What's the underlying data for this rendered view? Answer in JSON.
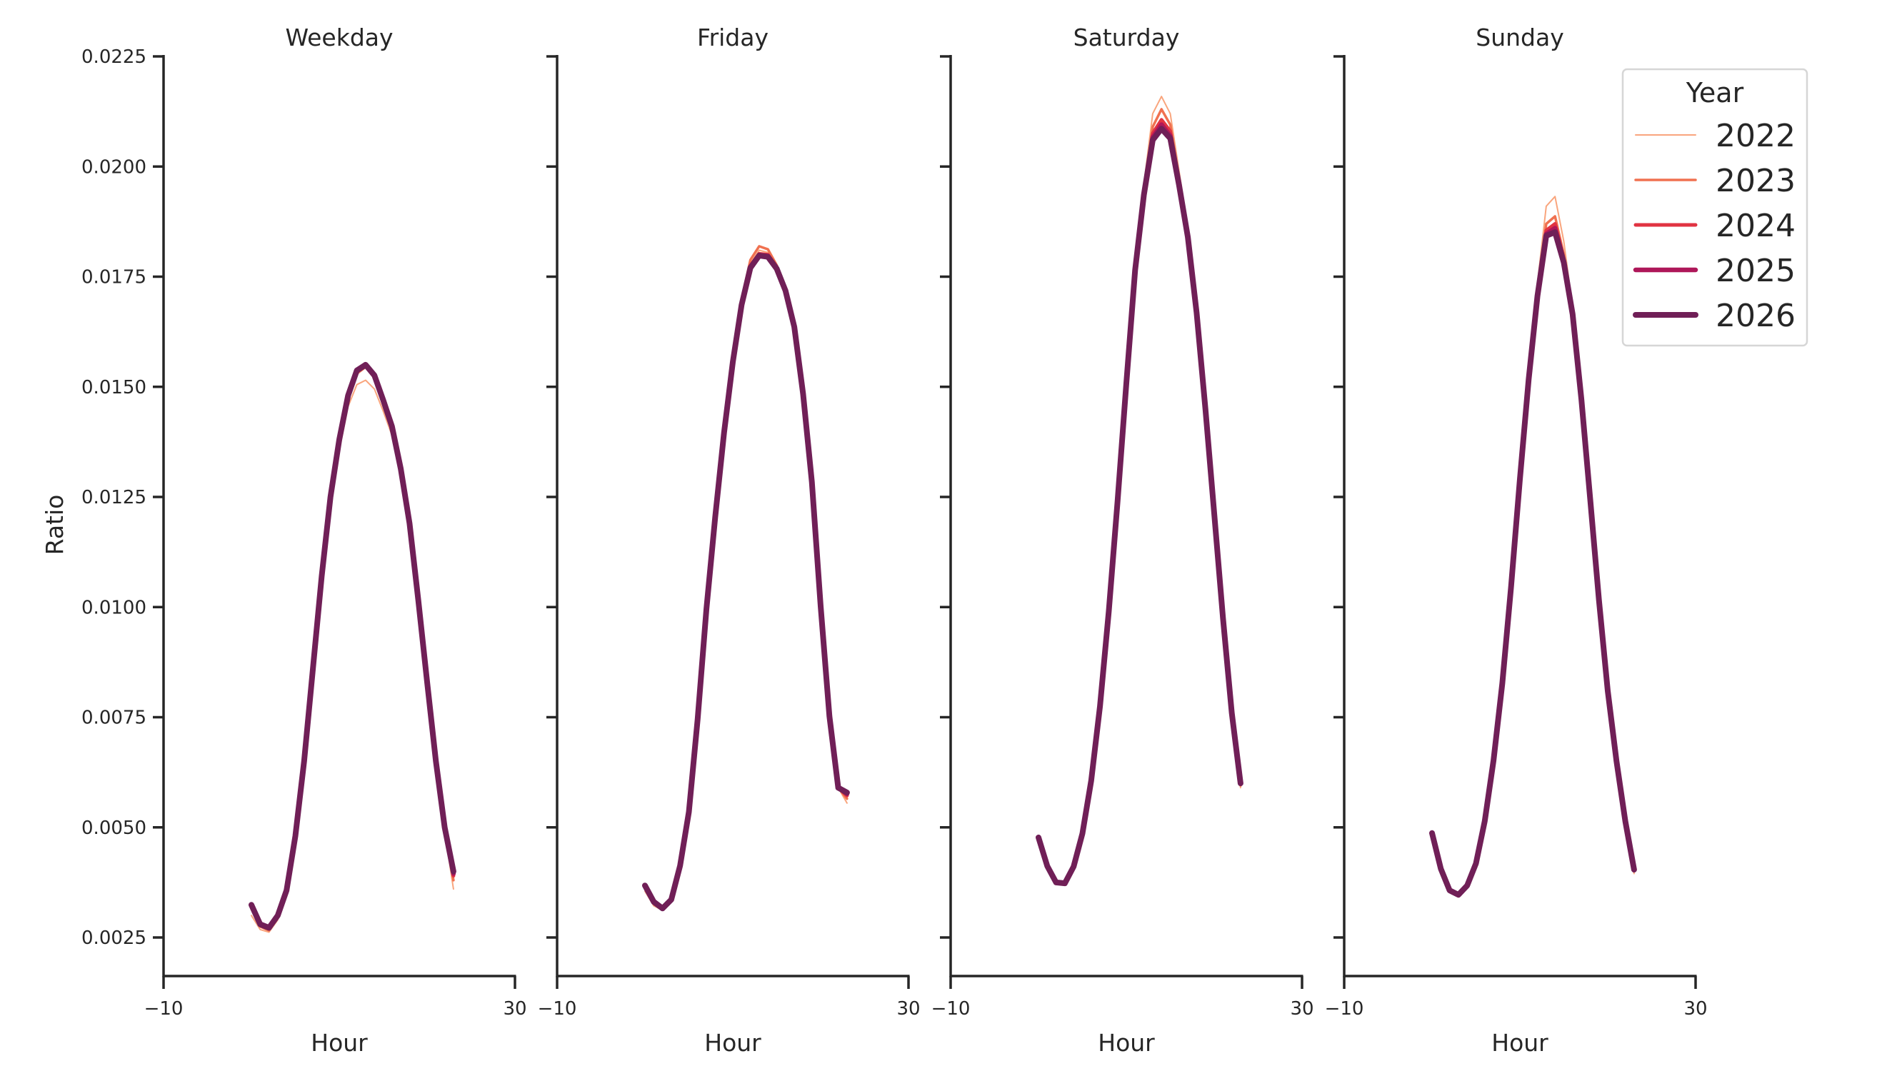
{
  "figure": {
    "ylabel": "Ratio",
    "xlabel": "Hour",
    "legend_title": "Year"
  },
  "chart_data": {
    "type": "line",
    "title": "",
    "xlabel": "Hour",
    "ylabel": "Ratio",
    "xlim": [
      -10,
      30
    ],
    "ylim": [
      0.0016,
      0.0225
    ],
    "xticks": [
      -10,
      30
    ],
    "xtick_labels": [
      "−10",
      "30"
    ],
    "yticks": [
      0.0025,
      0.005,
      0.0075,
      0.01,
      0.0125,
      0.015,
      0.0175,
      0.02,
      0.0225
    ],
    "ytick_labels": [
      "0.0025",
      "0.0050",
      "0.0075",
      "0.0100",
      "0.0125",
      "0.0150",
      "0.0175",
      "0.0200",
      "0.0225"
    ],
    "grid": false,
    "legend_position": "upper right (outside last panel)",
    "x": [
      0,
      1,
      2,
      3,
      4,
      5,
      6,
      7,
      8,
      9,
      10,
      11,
      12,
      13,
      14,
      15,
      16,
      17,
      18,
      19,
      20,
      21,
      22,
      23
    ],
    "legend": [
      {
        "name": "2022",
        "color": "#f9a57d",
        "width": 2
      },
      {
        "name": "2023",
        "color": "#f07150",
        "width": 3.5
      },
      {
        "name": "2024",
        "color": "#e13342",
        "width": 5
      },
      {
        "name": "2025",
        "color": "#ae1759",
        "width": 6.5
      },
      {
        "name": "2026",
        "color": "#701f57",
        "width": 8
      }
    ],
    "panels": [
      {
        "title": "Weekday",
        "series": [
          {
            "name": "2022",
            "values": [
              0.003,
              0.00268,
              0.00262,
              0.0029,
              0.00355,
              0.00475,
              0.0064,
              0.00845,
              0.0105,
              0.0122,
              0.01355,
              0.01455,
              0.01505,
              0.01515,
              0.01495,
              0.01445,
              0.0139,
              0.013,
              0.0118,
              0.01005,
              0.00825,
              0.00645,
              0.0049,
              0.0036
            ]
          },
          {
            "name": "2023",
            "values": [
              0.00315,
              0.00275,
              0.00266,
              0.00295,
              0.00356,
              0.00478,
              0.00646,
              0.00855,
              0.01065,
              0.01245,
              0.01378,
              0.01478,
              0.0153,
              0.01545,
              0.0152,
              0.01465,
              0.01405,
              0.0131,
              0.01188,
              0.0101,
              0.00828,
              0.00648,
              0.00495,
              0.0038
            ]
          },
          {
            "name": "2024",
            "values": [
              0.0032,
              0.00278,
              0.0027,
              0.00298,
              0.00357,
              0.0048,
              0.00648,
              0.00858,
              0.01068,
              0.01248,
              0.0138,
              0.0148,
              0.01535,
              0.0155,
              0.01524,
              0.01468,
              0.01408,
              0.01312,
              0.0119,
              0.01012,
              0.00829,
              0.00649,
              0.00497,
              0.0039
            ]
          },
          {
            "name": "2025",
            "values": [
              0.00322,
              0.00279,
              0.00271,
              0.00299,
              0.00357,
              0.0048,
              0.00649,
              0.00859,
              0.01069,
              0.01249,
              0.0138,
              0.01481,
              0.01536,
              0.01551,
              0.01525,
              0.01469,
              0.01409,
              0.01313,
              0.0119,
              0.01013,
              0.0083,
              0.0065,
              0.00498,
              0.00395
            ]
          },
          {
            "name": "2026",
            "values": [
              0.00324,
              0.0028,
              0.00272,
              0.003,
              0.00357,
              0.0048,
              0.0065,
              0.0086,
              0.0107,
              0.0125,
              0.0138,
              0.0148,
              0.01537,
              0.0155,
              0.01526,
              0.0147,
              0.0141,
              0.01314,
              0.0119,
              0.01015,
              0.0083,
              0.0065,
              0.005,
              0.004
            ]
          }
        ]
      },
      {
        "title": "Friday",
        "series": [
          {
            "name": "2022",
            "values": [
              0.00355,
              0.00322,
              0.00312,
              0.00332,
              0.0041,
              0.0053,
              0.0074,
              0.0099,
              0.012,
              0.0139,
              0.0155,
              0.0169,
              0.0178,
              0.0181,
              0.01805,
              0.0177,
              0.0172,
              0.01635,
              0.0148,
              0.0128,
              0.01,
              0.0075,
              0.0059,
              0.00555
            ]
          },
          {
            "name": "2023",
            "values": [
              0.00362,
              0.00326,
              0.00314,
              0.00334,
              0.00412,
              0.00534,
              0.00745,
              0.00995,
              0.01205,
              0.01395,
              0.01556,
              0.01698,
              0.01788,
              0.01819,
              0.01812,
              0.01776,
              0.01724,
              0.01638,
              0.01484,
              0.01284,
              0.01002,
              0.00752,
              0.0059,
              0.00565
            ]
          },
          {
            "name": "2024",
            "values": [
              0.00365,
              0.00329,
              0.00315,
              0.00335,
              0.00413,
              0.00535,
              0.00746,
              0.00996,
              0.01205,
              0.01395,
              0.01556,
              0.0169,
              0.01775,
              0.01802,
              0.018,
              0.01772,
              0.01722,
              0.01638,
              0.01484,
              0.01284,
              0.01002,
              0.00752,
              0.0059,
              0.00572
            ]
          },
          {
            "name": "2025",
            "values": [
              0.00367,
              0.0033,
              0.00316,
              0.00336,
              0.00413,
              0.00535,
              0.00746,
              0.00996,
              0.01205,
              0.01395,
              0.01556,
              0.01688,
              0.01772,
              0.01799,
              0.01797,
              0.0177,
              0.0172,
              0.01637,
              0.01484,
              0.01284,
              0.01002,
              0.00752,
              0.0059,
              0.00576
            ]
          },
          {
            "name": "2026",
            "values": [
              0.00368,
              0.00331,
              0.00316,
              0.00336,
              0.00413,
              0.00535,
              0.00746,
              0.00996,
              0.01205,
              0.01395,
              0.01556,
              0.01686,
              0.0177,
              0.01798,
              0.01795,
              0.01768,
              0.01718,
              0.01636,
              0.01484,
              0.01284,
              0.01002,
              0.00752,
              0.0059,
              0.00579
            ]
          }
        ]
      },
      {
        "title": "Saturday",
        "series": [
          {
            "name": "2022",
            "values": [
              0.0047,
              0.00405,
              0.0037,
              0.00375,
              0.00415,
              0.0049,
              0.0061,
              0.0078,
              0.01,
              0.0125,
              0.0152,
              0.0179,
              0.0196,
              0.0212,
              0.02159,
              0.0212,
              0.0199,
              0.0186,
              0.0168,
              0.0146,
              0.0122,
              0.0098,
              0.0076,
              0.0059
            ]
          },
          {
            "name": "2023",
            "values": [
              0.00474,
              0.00409,
              0.00373,
              0.00374,
              0.00413,
              0.00488,
              0.00608,
              0.00778,
              0.00995,
              0.01245,
              0.01513,
              0.01775,
              0.01945,
              0.0209,
              0.0213,
              0.02095,
              0.01975,
              0.0185,
              0.01675,
              0.01455,
              0.01217,
              0.00978,
              0.0076,
              0.00595
            ]
          },
          {
            "name": "2024",
            "values": [
              0.00476,
              0.00411,
              0.00374,
              0.00373,
              0.00412,
              0.00487,
              0.00607,
              0.00776,
              0.00992,
              0.01242,
              0.0151,
              0.0177,
              0.0194,
              0.02075,
              0.02106,
              0.0208,
              0.01965,
              0.01845,
              0.01672,
              0.01452,
              0.01215,
              0.00977,
              0.0076,
              0.00598
            ]
          },
          {
            "name": "2025",
            "values": [
              0.00477,
              0.00412,
              0.00375,
              0.00373,
              0.00411,
              0.00486,
              0.00606,
              0.00775,
              0.0099,
              0.0124,
              0.01508,
              0.01766,
              0.01937,
              0.02066,
              0.02095,
              0.0207,
              0.0196,
              0.01842,
              0.0167,
              0.0145,
              0.01214,
              0.00976,
              0.0076,
              0.00599
            ]
          },
          {
            "name": "2026",
            "values": [
              0.00477,
              0.00412,
              0.00375,
              0.00373,
              0.00411,
              0.00486,
              0.00606,
              0.00775,
              0.0099,
              0.0124,
              0.01508,
              0.01765,
              0.01936,
              0.0206,
              0.02086,
              0.02064,
              0.01958,
              0.0184,
              0.01668,
              0.0145,
              0.01213,
              0.00975,
              0.0076,
              0.006
            ]
          }
        ]
      },
      {
        "title": "Sunday",
        "series": [
          {
            "name": "2022",
            "values": [
              0.0048,
              0.004,
              0.00352,
              0.00342,
              0.00362,
              0.00415,
              0.0051,
              0.0065,
              0.00825,
              0.0105,
              0.013,
              0.0154,
              0.01735,
              0.0191,
              0.01932,
              0.0183,
              0.0168,
              0.0148,
              0.0125,
              0.0102,
              0.0081,
              0.0065,
              0.0051,
              0.00395
            ]
          },
          {
            "name": "2023",
            "values": [
              0.00484,
              0.00403,
              0.00355,
              0.00345,
              0.00365,
              0.00417,
              0.00512,
              0.00651,
              0.00826,
              0.01048,
              0.01295,
              0.01525,
              0.01715,
              0.0187,
              0.01887,
              0.018,
              0.0167,
              0.01475,
              0.01248,
              0.01018,
              0.0081,
              0.0065,
              0.00512,
              0.004
            ]
          },
          {
            "name": "2024",
            "values": [
              0.00486,
              0.00405,
              0.00356,
              0.00346,
              0.00367,
              0.00418,
              0.00513,
              0.00652,
              0.00827,
              0.01047,
              0.01292,
              0.0152,
              0.0171,
              0.01855,
              0.0187,
              0.0179,
              0.01667,
              0.01474,
              0.01247,
              0.01017,
              0.0081,
              0.0065,
              0.00513,
              0.00402
            ]
          },
          {
            "name": "2025",
            "values": [
              0.00487,
              0.00406,
              0.00357,
              0.00347,
              0.00368,
              0.00418,
              0.00514,
              0.00652,
              0.00827,
              0.01047,
              0.01291,
              0.01518,
              0.01708,
              0.01847,
              0.0186,
              0.01786,
              0.01666,
              0.01473,
              0.01247,
              0.01017,
              0.0081,
              0.0065,
              0.00514,
              0.00403
            ]
          },
          {
            "name": "2026",
            "values": [
              0.00487,
              0.00406,
              0.00357,
              0.00347,
              0.00368,
              0.00418,
              0.00514,
              0.00652,
              0.00827,
              0.01047,
              0.0129,
              0.01517,
              0.01706,
              0.01843,
              0.01851,
              0.01782,
              0.01665,
              0.01472,
              0.01246,
              0.01016,
              0.0081,
              0.0065,
              0.00514,
              0.00404
            ]
          }
        ]
      }
    ]
  }
}
